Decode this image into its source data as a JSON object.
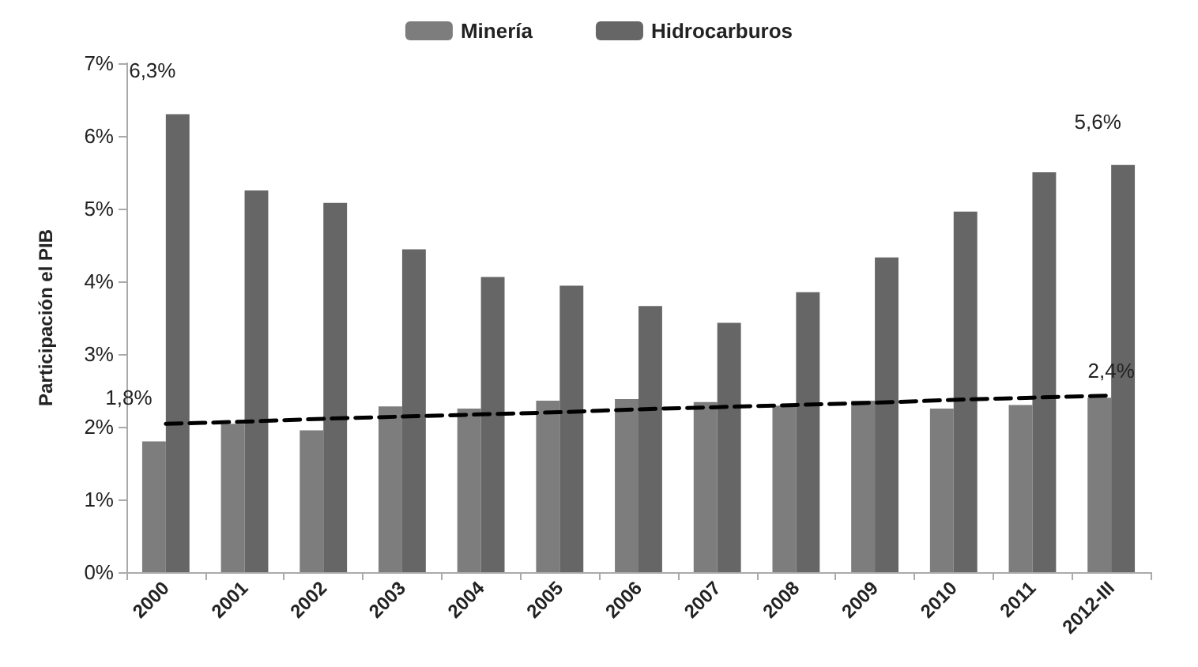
{
  "chart_data": {
    "type": "bar",
    "ylabel": "Participación el PIB",
    "categories": [
      "2000",
      "2001",
      "2002",
      "2003",
      "2004",
      "2005",
      "2006",
      "2007",
      "2008",
      "2009",
      "2010",
      "2011",
      "2012-III"
    ],
    "series": [
      {
        "name": "Minería",
        "color": "#7d7d7d",
        "values": [
          1.8,
          2.04,
          1.95,
          2.28,
          2.25,
          2.36,
          2.38,
          2.34,
          2.29,
          2.36,
          2.25,
          2.3,
          2.4
        ],
        "value_labels": [
          "1,8%",
          null,
          null,
          null,
          null,
          null,
          null,
          null,
          null,
          null,
          null,
          null,
          null
        ]
      },
      {
        "name": "Hidrocarburos",
        "color": "#666666",
        "values": [
          6.3,
          5.25,
          5.08,
          4.44,
          4.06,
          3.94,
          3.66,
          3.43,
          3.85,
          4.33,
          4.96,
          5.5,
          5.6
        ],
        "value_labels": [
          "6,3%",
          null,
          null,
          null,
          null,
          null,
          null,
          null,
          null,
          null,
          null,
          null,
          "5,6%"
        ]
      },
      {
        "type": "line",
        "color": "#000000",
        "line_style": "dashed",
        "marker": "none",
        "values": [
          2.04,
          2.07,
          2.11,
          2.14,
          2.17,
          2.2,
          2.24,
          2.27,
          2.3,
          2.33,
          2.37,
          2.4,
          2.43
        ],
        "value_labels": [
          null,
          null,
          null,
          null,
          null,
          null,
          null,
          null,
          null,
          null,
          null,
          null,
          "2,4%"
        ]
      }
    ],
    "ylim": [
      0,
      7
    ],
    "yticks": [
      {
        "value": 0,
        "label": "0%"
      },
      {
        "value": 1,
        "label": "1%"
      },
      {
        "value": 2,
        "label": "2%"
      },
      {
        "value": 3,
        "label": "3%"
      },
      {
        "value": 4,
        "label": "4%"
      },
      {
        "value": 5,
        "label": "5%"
      },
      {
        "value": 6,
        "label": "6%"
      },
      {
        "value": 7,
        "label": "7%"
      }
    ],
    "grid": false,
    "legend": "top"
  }
}
